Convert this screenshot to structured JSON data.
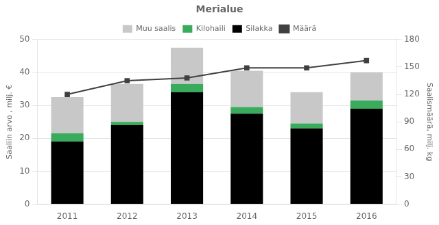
{
  "chart_data": {
    "type": "bar",
    "title": "Merialue",
    "categories": [
      "2011",
      "2012",
      "2013",
      "2014",
      "2015",
      "2016"
    ],
    "series": [
      {
        "name": "Silakka",
        "color": "#000000",
        "values": [
          19.0,
          24.0,
          34.0,
          27.5,
          23.0,
          29.0
        ]
      },
      {
        "name": "Kilohaili",
        "color": "#3aaa5c",
        "values": [
          2.5,
          1.0,
          2.5,
          2.0,
          1.5,
          2.5
        ]
      },
      {
        "name": "Muu saalis",
        "color": "#c8c8c8",
        "values": [
          11.0,
          11.5,
          11.0,
          11.0,
          9.5,
          8.5
        ]
      },
      {
        "name": "Määrä",
        "type": "line",
        "axis": "y2",
        "color": "#404040",
        "marker": "square",
        "values": [
          120,
          135,
          138,
          149,
          149,
          157
        ]
      }
    ],
    "stacked": true,
    "ylabel": "Saaliin arvo , milj. €",
    "y2label": "Saalismäärä, milj. kg",
    "ylim": [
      0,
      50
    ],
    "yticks": [
      0,
      10,
      20,
      30,
      40,
      50
    ],
    "y2lim": [
      0,
      180
    ],
    "y2ticks": [
      0,
      30,
      60,
      90,
      120,
      150,
      180
    ],
    "grid": true,
    "legend": "top"
  }
}
